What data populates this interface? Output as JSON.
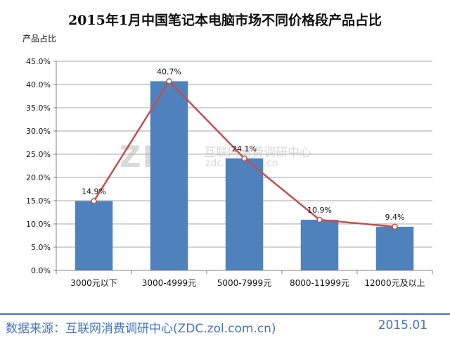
{
  "chart_data": {
    "type": "bar",
    "title": "2015年1月中国笔记本电脑市场不同价格段产品占比",
    "ylabel": "产品占比",
    "xlabel": "",
    "categories": [
      "3000元以下",
      "3000-4999元",
      "5000-7999元",
      "8000-11999元",
      "12000元及以上"
    ],
    "values": [
      14.9,
      40.7,
      24.1,
      10.9,
      9.4
    ],
    "data_labels": [
      "14.9%",
      "40.7%",
      "24.1%",
      "10.9%",
      "9.4%"
    ],
    "ylim": [
      0,
      45
    ],
    "yticks": [
      "0.0%",
      "5.0%",
      "10.0%",
      "15.0%",
      "20.0%",
      "25.0%",
      "30.0%",
      "35.0%",
      "40.0%",
      "45.0%"
    ],
    "overlay_line": true,
    "grid": true,
    "colors": {
      "bar": "#4f81bd",
      "line": "#c0504d",
      "grid": "#a6a6a6",
      "axis": "#808080"
    }
  },
  "watermark": {
    "logo": "ZDC",
    "cn": "互联网消费调研中心",
    "url": "zdc.zol.com.cn"
  },
  "footer": {
    "source": "数据来源：互联网消费调研中心(ZDC.zol.com.cn)",
    "date": "2015.01"
  }
}
